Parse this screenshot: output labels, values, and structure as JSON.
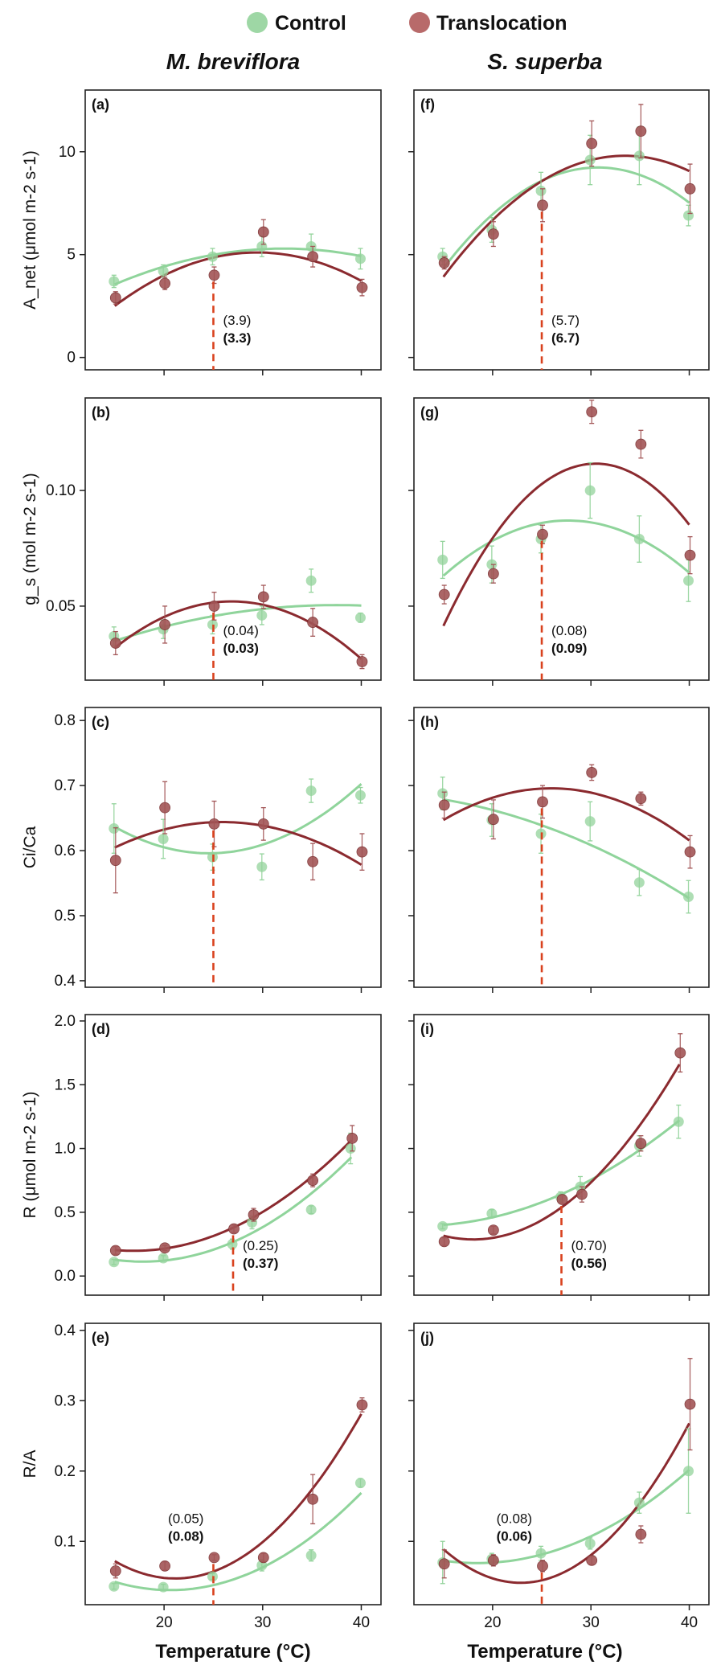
{
  "legend": {
    "control": "Control",
    "translocation": "Translocation"
  },
  "columns": [
    "M. breviflora",
    "S. superba"
  ],
  "x_title": "Temperature (°C)",
  "colors": {
    "control": "#93d39b",
    "translocation": "#9e4c4c",
    "control_line": "#8fd49b",
    "translocation_line": "#8b2a2f",
    "marker": "#d9421e"
  },
  "chart_data": [
    {
      "type": "scatter",
      "panel": "(a)",
      "ylabel": "A_net (μmol m-2 s-1)",
      "ylim": [
        -0.6,
        13
      ],
      "yticks": [
        0,
        5,
        10
      ],
      "xlim": [
        12,
        42
      ],
      "xticks": [
        20,
        30,
        40
      ],
      "series": [
        {
          "name": "Control",
          "x": [
            15,
            20,
            25,
            30,
            35,
            40
          ],
          "y": [
            3.7,
            4.2,
            4.9,
            5.4,
            5.4,
            4.8
          ],
          "err": [
            0.3,
            0.3,
            0.4,
            0.5,
            0.6,
            0.5
          ],
          "fit": [
            0.0,
            0.13,
            0.0022
          ]
        },
        {
          "name": "Translocation",
          "x": [
            15,
            20,
            25,
            30,
            35,
            40
          ],
          "y": [
            2.9,
            3.6,
            4.0,
            6.1,
            4.9,
            3.4
          ],
          "err": [
            0.3,
            0.3,
            0.4,
            0.6,
            0.5,
            0.4
          ],
          "fit": [
            0.0,
            0.0,
            0.0
          ]
        }
      ],
      "marker_x": 25,
      "annotation": [
        "(3.9)",
        "(3.3)"
      ]
    },
    {
      "type": "scatter",
      "panel": "(f)",
      "ylabel": "",
      "ylim": [
        -0.6,
        13
      ],
      "yticks": [
        0,
        5,
        10
      ],
      "xlim": [
        12,
        42
      ],
      "xticks": [
        20,
        30,
        40
      ],
      "series": [
        {
          "name": "Control",
          "x": [
            15,
            20,
            25,
            30,
            35,
            40
          ],
          "y": [
            4.9,
            6.2,
            8.1,
            9.6,
            9.8,
            6.9
          ],
          "err": [
            0.4,
            0.6,
            0.9,
            1.2,
            1.4,
            0.5
          ]
        },
        {
          "name": "Translocation",
          "x": [
            15,
            20,
            25,
            30,
            35,
            40
          ],
          "y": [
            4.6,
            6.0,
            7.4,
            10.4,
            11.0,
            8.2
          ],
          "err": [
            0.3,
            0.6,
            0.8,
            1.1,
            1.3,
            1.2
          ]
        }
      ],
      "marker_x": 25,
      "annotation": [
        "(5.7)",
        "(6.7)"
      ]
    },
    {
      "type": "scatter",
      "panel": "(b)",
      "ylabel": "g_s (mol m-2 s-1)",
      "ylim": [
        0.018,
        0.14
      ],
      "yticks": [
        0.05,
        0.1
      ],
      "xlim": [
        12,
        42
      ],
      "xticks": [
        20,
        30,
        40
      ],
      "series": [
        {
          "name": "Control",
          "x": [
            15,
            20,
            25,
            30,
            35,
            40
          ],
          "y": [
            0.037,
            0.04,
            0.042,
            0.046,
            0.061,
            0.045
          ],
          "err": [
            0.004,
            0.004,
            0.004,
            0.004,
            0.005,
            0.002
          ]
        },
        {
          "name": "Translocation",
          "x": [
            15,
            20,
            25,
            30,
            35,
            40
          ],
          "y": [
            0.034,
            0.042,
            0.05,
            0.054,
            0.043,
            0.026
          ],
          "err": [
            0.005,
            0.008,
            0.006,
            0.005,
            0.006,
            0.003
          ]
        }
      ],
      "marker_x": 25,
      "annotation": [
        "(0.04)",
        "(0.03)"
      ]
    },
    {
      "type": "scatter",
      "panel": "(g)",
      "ylabel": "",
      "ylim": [
        0.018,
        0.14
      ],
      "yticks": [
        0.05,
        0.1
      ],
      "xlim": [
        12,
        42
      ],
      "xticks": [
        20,
        30,
        40
      ],
      "series": [
        {
          "name": "Control",
          "x": [
            15,
            20,
            25,
            30,
            35,
            40
          ],
          "y": [
            0.07,
            0.068,
            0.079,
            0.1,
            0.079,
            0.061
          ],
          "err": [
            0.008,
            0.008,
            0.006,
            0.012,
            0.01,
            0.009
          ]
        },
        {
          "name": "Translocation",
          "x": [
            15,
            20,
            25,
            30,
            35,
            40
          ],
          "y": [
            0.055,
            0.064,
            0.081,
            0.134,
            0.12,
            0.072
          ],
          "err": [
            0.004,
            0.004,
            0.004,
            0.005,
            0.006,
            0.008
          ]
        }
      ],
      "marker_x": 25,
      "annotation": [
        "(0.08)",
        "(0.09)"
      ]
    },
    {
      "type": "scatter",
      "panel": "(c)",
      "ylabel": "Ci/Ca",
      "ylim": [
        0.39,
        0.82
      ],
      "yticks": [
        0.4,
        0.5,
        0.6,
        0.7,
        0.8
      ],
      "xlim": [
        12,
        42
      ],
      "xticks": [
        20,
        30,
        40
      ],
      "series": [
        {
          "name": "Control",
          "x": [
            15,
            20,
            25,
            30,
            35,
            40
          ],
          "y": [
            0.634,
            0.618,
            0.59,
            0.575,
            0.692,
            0.685
          ],
          "err": [
            0.038,
            0.03,
            0.02,
            0.02,
            0.018,
            0.012
          ]
        },
        {
          "name": "Translocation",
          "x": [
            15,
            20,
            25,
            30,
            35,
            40
          ],
          "y": [
            0.585,
            0.666,
            0.641,
            0.641,
            0.583,
            0.598
          ],
          "err": [
            0.05,
            0.04,
            0.035,
            0.025,
            0.028,
            0.028
          ]
        }
      ],
      "marker_x": 25,
      "annotation": []
    },
    {
      "type": "scatter",
      "panel": "(h)",
      "ylabel": "",
      "ylim": [
        0.39,
        0.82
      ],
      "yticks": [
        0.4,
        0.5,
        0.6,
        0.7,
        0.8
      ],
      "xlim": [
        12,
        42
      ],
      "xticks": [
        20,
        30,
        40
      ],
      "series": [
        {
          "name": "Control",
          "x": [
            15,
            20,
            25,
            30,
            35,
            40
          ],
          "y": [
            0.688,
            0.647,
            0.626,
            0.645,
            0.551,
            0.529
          ],
          "err": [
            0.025,
            0.025,
            0.03,
            0.03,
            0.02,
            0.025
          ]
        },
        {
          "name": "Translocation",
          "x": [
            15,
            20,
            25,
            30,
            35,
            40
          ],
          "y": [
            0.67,
            0.648,
            0.675,
            0.72,
            0.68,
            0.598
          ],
          "err": [
            0.02,
            0.03,
            0.025,
            0.012,
            0.01,
            0.025
          ]
        }
      ],
      "marker_x": 25,
      "annotation": []
    },
    {
      "type": "scatter",
      "panel": "(d)",
      "ylabel": "R (μmol m-2 s-1)",
      "ylim": [
        -0.15,
        2.05
      ],
      "yticks": [
        0,
        0.5,
        1.0,
        1.5,
        2.0
      ],
      "xlim": [
        12,
        42
      ],
      "xticks": [
        20,
        30,
        40
      ],
      "series": [
        {
          "name": "Control",
          "x": [
            15,
            20,
            27,
            29,
            35,
            39
          ],
          "y": [
            0.11,
            0.14,
            0.25,
            0.42,
            0.52,
            1.0
          ],
          "err": [
            0.02,
            0.02,
            0.04,
            0.05,
            0.03,
            0.12
          ]
        },
        {
          "name": "Translocation",
          "x": [
            15,
            20,
            27,
            29,
            35,
            39
          ],
          "y": [
            0.2,
            0.22,
            0.37,
            0.48,
            0.75,
            1.08
          ],
          "err": [
            0.03,
            0.02,
            0.03,
            0.05,
            0.05,
            0.1
          ]
        }
      ],
      "marker_x": 27,
      "annotation": [
        "(0.25)",
        "(0.37)"
      ]
    },
    {
      "type": "scatter",
      "panel": "(i)",
      "ylabel": "",
      "ylim": [
        -0.15,
        2.05
      ],
      "yticks": [
        0,
        0.5,
        1.0,
        1.5,
        2.0
      ],
      "xlim": [
        12,
        42
      ],
      "xticks": [
        20,
        30,
        40
      ],
      "series": [
        {
          "name": "Control",
          "x": [
            15,
            20,
            27,
            29,
            35,
            39
          ],
          "y": [
            0.39,
            0.49,
            0.62,
            0.7,
            1.02,
            1.21
          ],
          "err": [
            0.02,
            0.03,
            0.04,
            0.08,
            0.08,
            0.13
          ]
        },
        {
          "name": "Translocation",
          "x": [
            15,
            20,
            27,
            29,
            35,
            39
          ],
          "y": [
            0.27,
            0.36,
            0.6,
            0.64,
            1.04,
            1.75
          ],
          "err": [
            0.03,
            0.03,
            0.03,
            0.06,
            0.06,
            0.15
          ]
        }
      ],
      "marker_x": 27,
      "annotation": [
        "(0.70)",
        "(0.56)"
      ]
    },
    {
      "type": "scatter",
      "panel": "(e)",
      "ylabel": "R/A",
      "ylim": [
        0.01,
        0.41
      ],
      "yticks": [
        0.1,
        0.2,
        0.3,
        0.4
      ],
      "xlim": [
        12,
        42
      ],
      "xticks": [
        20,
        30,
        40
      ],
      "series": [
        {
          "name": "Control",
          "x": [
            15,
            20,
            25,
            30,
            35,
            40
          ],
          "y": [
            0.036,
            0.035,
            0.05,
            0.066,
            0.08,
            0.183
          ],
          "err": [
            0.004,
            0.004,
            0.004,
            0.008,
            0.008,
            0.006
          ]
        },
        {
          "name": "Translocation",
          "x": [
            15,
            20,
            25,
            30,
            35,
            40
          ],
          "y": [
            0.058,
            0.065,
            0.077,
            0.077,
            0.16,
            0.294
          ],
          "err": [
            0.01,
            0.006,
            0.004,
            0.006,
            0.035,
            0.01
          ]
        }
      ],
      "marker_x": 25,
      "annotation": [
        "(0.05)",
        "(0.08)"
      ]
    },
    {
      "type": "scatter",
      "panel": "(j)",
      "ylabel": "",
      "ylim": [
        0.01,
        0.41
      ],
      "yticks": [
        0.1,
        0.2,
        0.3,
        0.4
      ],
      "xlim": [
        12,
        42
      ],
      "xticks": [
        20,
        30,
        40
      ],
      "series": [
        {
          "name": "Control",
          "x": [
            15,
            20,
            25,
            30,
            35,
            40
          ],
          "y": [
            0.07,
            0.075,
            0.083,
            0.097,
            0.155,
            0.2
          ],
          "err": [
            0.03,
            0.008,
            0.01,
            0.008,
            0.015,
            0.06
          ]
        },
        {
          "name": "Translocation",
          "x": [
            15,
            20,
            25,
            30,
            35,
            40
          ],
          "y": [
            0.068,
            0.073,
            0.065,
            0.073,
            0.11,
            0.295
          ],
          "err": [
            0.02,
            0.008,
            0.008,
            0.006,
            0.012,
            0.065
          ]
        }
      ],
      "marker_x": 25,
      "annotation": [
        "(0.08)",
        "(0.06)"
      ]
    }
  ]
}
